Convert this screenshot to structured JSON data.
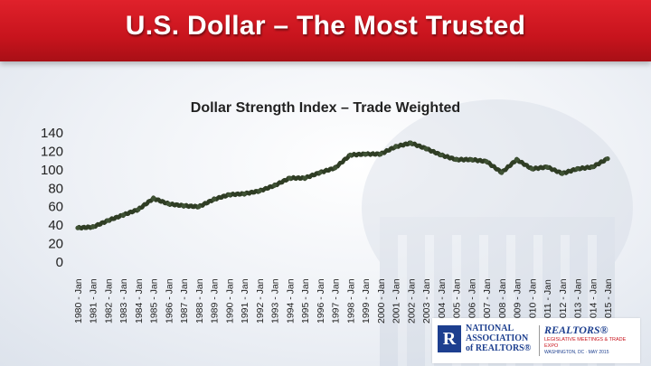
{
  "header": {
    "title": "U.S. Dollar – The Most Trusted"
  },
  "colors": {
    "banner": "#c8141d",
    "series": "#2f3d24",
    "text": "#222222"
  },
  "chart_data": {
    "type": "line",
    "title": "Dollar Strength Index – Trade Weighted",
    "xlabel": "",
    "ylabel": "",
    "ylim": [
      0,
      140
    ],
    "yticks": [
      0,
      20,
      40,
      60,
      80,
      100,
      120,
      140
    ],
    "categories": [
      "1980 - Jan",
      "1981 - Jan",
      "1982 - Jan",
      "1983 - Jan",
      "1984 - Jan",
      "1985 - Jan",
      "1986 - Jan",
      "1987 - Jan",
      "1988 - Jan",
      "1989 - Jan",
      "1990 - Jan",
      "1991 - Jan",
      "1992 - Jan",
      "1993 - Jan",
      "1994 - Jan",
      "1995 - Jan",
      "1996 - Jan",
      "1997 - Jan",
      "1998 - Jan",
      "1999 - Jan",
      "2000 - Jan",
      "2001 - Jan",
      "2002 - Jan",
      "2003 - Jan",
      "2004 - Jan",
      "2005 - Jan",
      "2006 - Jan",
      "2007 - Jan",
      "2008 - Jan",
      "2009 - Jan",
      "2010 - Jan",
      "2011 - Jan",
      "2012 - Jan",
      "2013 - Jan",
      "2014 - Jan",
      "2015 - Jan"
    ],
    "series": [
      {
        "name": "",
        "values": [
          37,
          38,
          45,
          51,
          57,
          69,
          63,
          61,
          60,
          68,
          73,
          74,
          77,
          83,
          91,
          91,
          97,
          102,
          116,
          117,
          117,
          125,
          129,
          123,
          116,
          111,
          111,
          109,
          97,
          111,
          101,
          103,
          96,
          101,
          103,
          112
        ]
      }
    ],
    "grid": false,
    "legend": "none"
  },
  "logos": {
    "nar_mark": "R",
    "nar_text": "NATIONAL ASSOCIATION of REALTORS®",
    "legis_brand": "REALTORS®",
    "legis_line1": "LEGISLATIVE MEETINGS & TRADE EXPO",
    "legis_line2": "WASHINGTON, DC · MAY 2015"
  }
}
